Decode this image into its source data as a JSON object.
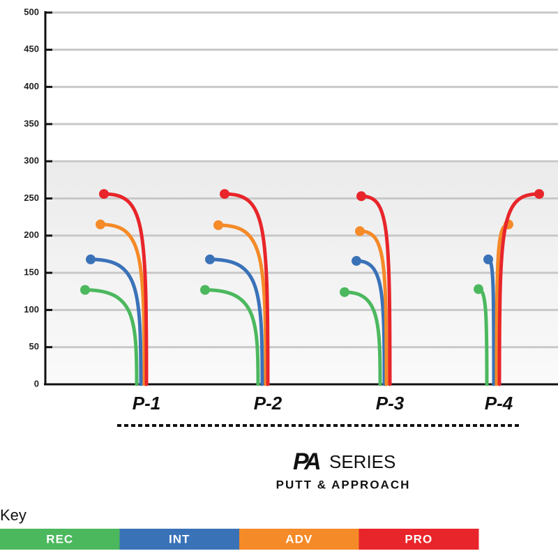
{
  "chart_data": {
    "type": "flight",
    "title": "SERIES",
    "subtitle": "PUTT & APPROACH",
    "legend_title": "Key",
    "categories": [
      "P-1",
      "P-2",
      "P-3",
      "P-4"
    ],
    "highlight_color": "#6cc04a",
    "series": [
      {
        "name": "REC",
        "color": "#4cb85e",
        "values": [
          127,
          127,
          124,
          128
        ]
      },
      {
        "name": "INT",
        "color": "#3a72b8",
        "values": [
          168,
          168,
          166,
          168
        ]
      },
      {
        "name": "ADV",
        "color": "#f58a28",
        "values": [
          215,
          214,
          206,
          215
        ]
      },
      {
        "name": "PRO",
        "color": "#e8252a",
        "values": [
          256,
          256,
          253,
          256
        ]
      }
    ],
    "ylim": [
      0,
      500
    ],
    "yticks": [
      0,
      50,
      100,
      150,
      200,
      250,
      300,
      350,
      400,
      450,
      500
    ],
    "grid": true
  }
}
